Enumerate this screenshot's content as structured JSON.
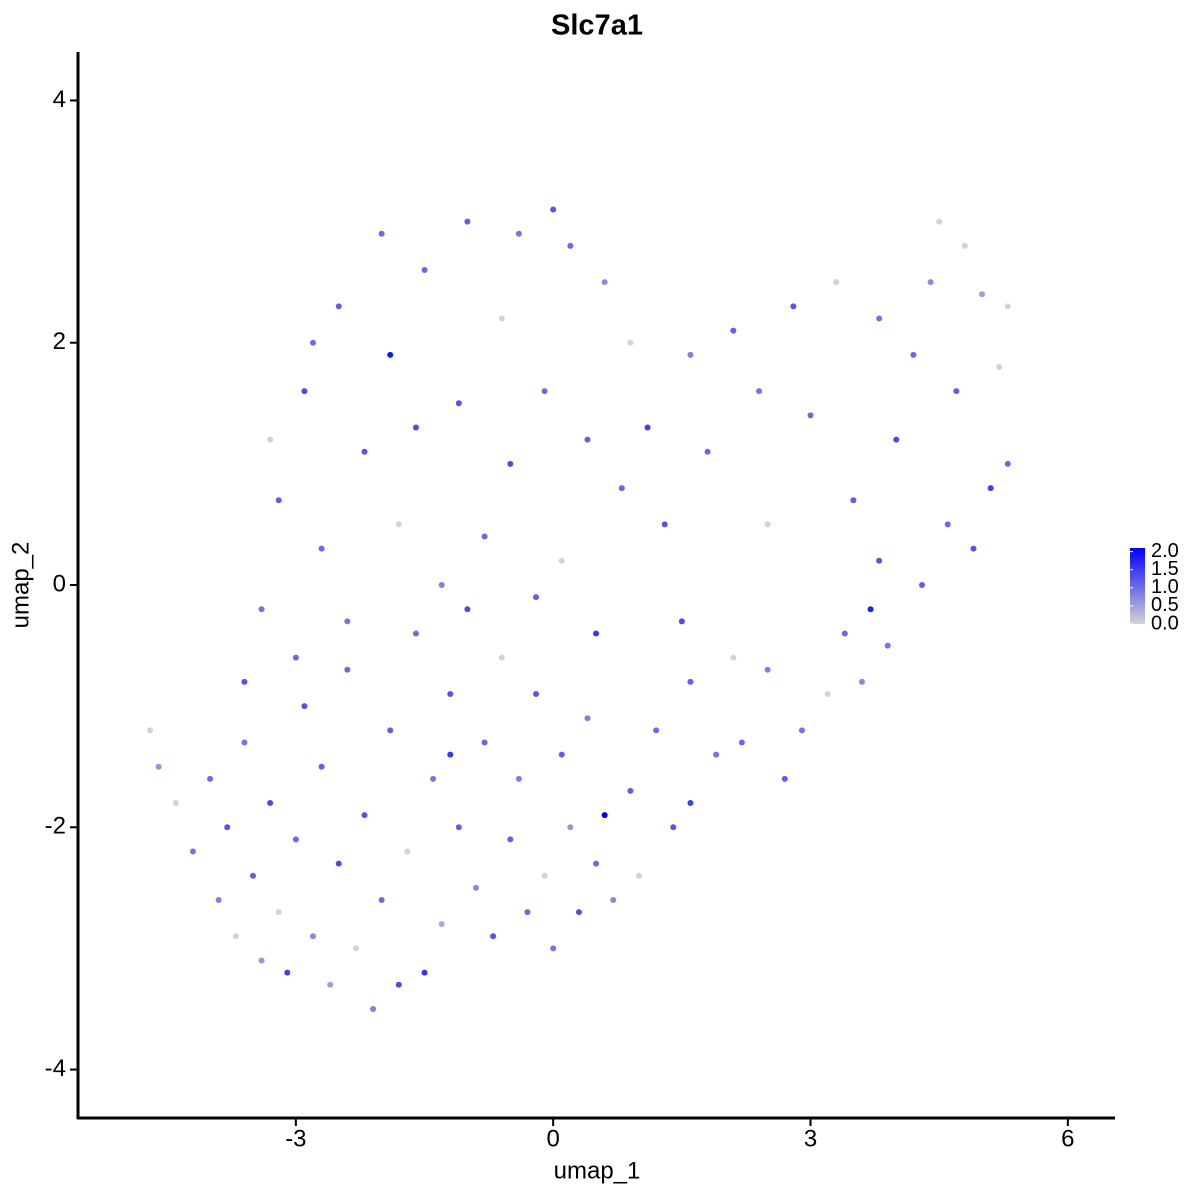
{
  "chart_data": {
    "type": "scatter",
    "title": "Slc7a1",
    "x_label": "umap_1",
    "y_label": "umap_2",
    "xlim": [
      -5.54,
      6.55
    ],
    "xticks": [
      -3,
      0,
      3,
      6
    ],
    "ylim": [
      -4.4,
      4.4
    ],
    "yticks": [
      -4,
      -2,
      0,
      2,
      4
    ],
    "color_low": "#d3d3d3",
    "color_high": "#0000ff",
    "clim": [
      0,
      2.1
    ],
    "cticks": [
      {
        "value": 0,
        "label": "0.0"
      },
      {
        "value": 0.5,
        "label": "0.5"
      },
      {
        "value": 1,
        "label": "1.0"
      },
      {
        "value": 1.5,
        "label": "1.5"
      },
      {
        "value": 2,
        "label": "2.0"
      }
    ],
    "x": [
      -4.7,
      -4.6,
      -4.4,
      -4.2,
      -4.0,
      -3.9,
      -3.8,
      -3.7,
      -3.6,
      -3.5,
      -3.4,
      -3.3,
      -3.2,
      -3.1,
      -3.0,
      -2.9,
      -2.8,
      -2.7,
      -2.6,
      -2.5,
      -2.4,
      -2.3,
      -2.2,
      -2.1,
      -2.0,
      -1.9,
      -1.8,
      -1.7,
      -1.6,
      -1.5,
      -1.4,
      -1.3,
      -1.2,
      -1.1,
      -1.0,
      -0.9,
      -0.8,
      -0.7,
      -0.6,
      -0.5,
      -0.4,
      -0.3,
      -0.2,
      -0.1,
      0.0,
      0.1,
      0.2,
      0.3,
      0.4,
      0.5,
      0.6,
      0.7,
      0.9,
      1.0,
      1.2,
      1.4,
      1.6,
      1.6,
      1.9,
      2.1,
      2.2,
      2.5,
      2.7,
      2.9,
      3.2,
      3.4,
      3.6,
      3.8,
      3.9,
      4.3,
      4.6,
      4.9,
      5.1,
      5.3,
      5.2,
      5.3,
      5.0,
      4.8,
      4.5,
      4.4,
      4.7,
      4.2,
      4.0,
      3.8,
      3.5,
      3.3,
      3.0,
      2.8,
      2.5,
      2.4,
      2.1,
      1.8,
      1.6,
      1.3,
      1.1,
      0.9,
      0.8,
      0.6,
      0.5,
      0.4,
      0.2,
      0.1,
      0.0,
      -0.1,
      -0.2,
      -0.4,
      -0.5,
      -0.6,
      -0.8,
      -1.0,
      -1.1,
      -1.3,
      -1.5,
      -1.6,
      -1.8,
      -1.9,
      -2.0,
      -2.2,
      -2.4,
      -2.5,
      -2.7,
      -2.9,
      -3.0,
      -3.2,
      -3.4,
      -3.6,
      -3.3,
      -2.8,
      -1.2,
      1.5,
      3.7
    ],
    "values": [
      -1.2,
      -1.5,
      -1.8,
      -2.2,
      -1.6,
      -2.6,
      -2.0,
      -2.9,
      -1.3,
      -2.4,
      -3.1,
      -1.8,
      -2.7,
      -3.2,
      -2.1,
      -1.0,
      -2.9,
      -1.5,
      -3.3,
      -2.3,
      -0.7,
      -3.0,
      -1.9,
      -3.5,
      -2.6,
      -1.2,
      -3.3,
      -2.2,
      -0.4,
      -3.2,
      -1.6,
      -2.8,
      -0.9,
      -2.0,
      -0.2,
      -2.5,
      -1.3,
      -2.9,
      -0.6,
      -2.1,
      -1.6,
      -2.7,
      -0.9,
      -2.4,
      -3.0,
      -1.4,
      -2.0,
      -2.7,
      -1.1,
      -2.3,
      -1.9,
      -2.6,
      -1.7,
      -2.4,
      -1.2,
      -2.0,
      -0.8,
      -1.8,
      -1.4,
      -0.6,
      -1.3,
      -0.7,
      -1.6,
      -1.2,
      -0.9,
      -0.4,
      -0.8,
      0.2,
      -0.5,
      0.0,
      0.5,
      0.3,
      0.8,
      1.0,
      1.8,
      2.3,
      2.4,
      2.8,
      3.0,
      2.5,
      1.6,
      1.9,
      1.2,
      2.2,
      0.7,
      2.5,
      1.4,
      2.3,
      0.5,
      1.6,
      2.1,
      1.1,
      1.9,
      0.5,
      1.3,
      2.0,
      0.8,
      2.5,
      -0.4,
      1.2,
      2.8,
      0.2,
      3.1,
      1.6,
      -0.1,
      2.9,
      1.0,
      2.2,
      0.4,
      3.0,
      1.5,
      0.0,
      2.6,
      1.3,
      0.5,
      1.9,
      2.9,
      1.1,
      -0.3,
      2.3,
      0.3,
      1.6,
      -0.6,
      0.7,
      -0.2,
      -0.8,
      1.2,
      2.0,
      -1.4,
      -0.3,
      -0.2
    ],
    "expression": [
      0,
      0.6,
      0,
      0.9,
      1.0,
      0.8,
      1.2,
      0,
      0.9,
      1.1,
      0.6,
      1.3,
      0,
      1.4,
      1.0,
      1.2,
      0.7,
      1.1,
      0.5,
      1.3,
      1.0,
      0,
      1.2,
      0.8,
      1.0,
      1.1,
      1.3,
      0,
      1.0,
      1.5,
      0.9,
      0.4,
      1.2,
      1.1,
      1.3,
      0.7,
      1.0,
      1.2,
      0,
      1.1,
      0.8,
      1.0,
      1.2,
      0,
      0.9,
      1.1,
      0.6,
      1.2,
      0.8,
      1.0,
      2.0,
      0.7,
      1.1,
      0,
      1.0,
      1.2,
      1.1,
      1.4,
      0.9,
      0,
      1.0,
      0.8,
      1.1,
      0.9,
      0,
      1.0,
      0.7,
      1.2,
      0.9,
      1.1,
      1.0,
      1.2,
      1.4,
      1.0,
      0,
      0,
      0.5,
      0,
      0,
      0.7,
      1.1,
      1.0,
      1.3,
      0.9,
      1.1,
      0,
      1.0,
      1.2,
      0,
      0.9,
      1.1,
      1.0,
      0.8,
      1.2,
      1.4,
      0,
      1.0,
      0.7,
      1.5,
      1.1,
      1.0,
      0,
      1.2,
      1.0,
      1.1,
      0.9,
      1.3,
      0,
      1.0,
      1.1,
      1.2,
      0.8,
      1.0,
      1.3,
      0,
      1.8,
      1.0,
      1.2,
      0.9,
      1.1,
      1.0,
      1.3,
      1.0,
      1.1,
      0.9,
      1.2,
      0,
      1.0,
      1.5,
      1.3,
      1.7
    ]
  }
}
